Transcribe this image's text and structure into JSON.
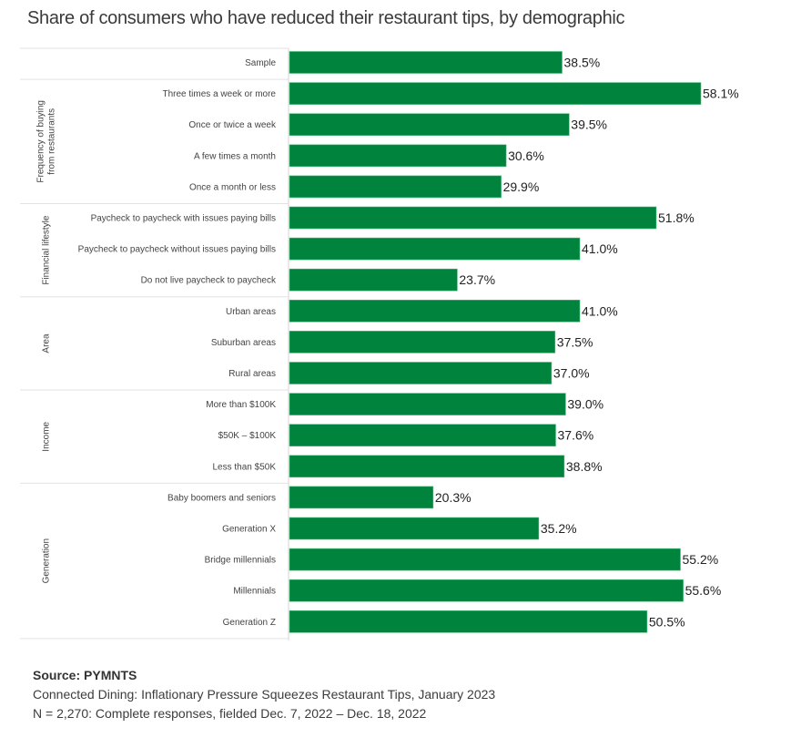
{
  "chart_data": {
    "type": "bar",
    "orientation": "horizontal",
    "title": "Share of consumers who have reduced their restaurant tips, by demographic",
    "xlabel": "",
    "ylabel": "",
    "xlim": [
      0,
      60
    ],
    "grid": false,
    "value_format": "percent, 1 decimal",
    "bar_color": "#00843D",
    "groups": [
      {
        "name": "",
        "categories": [
          "Sample"
        ],
        "values": [
          38.5
        ]
      },
      {
        "name": "Frequency of buying from restaurants",
        "name_lines": [
          "Frequency of buying",
          "from restaurants"
        ],
        "categories": [
          "Three times a week or more",
          "Once or twice a week",
          "A few times a month",
          "Once a month or less"
        ],
        "values": [
          58.1,
          39.5,
          30.6,
          29.9
        ]
      },
      {
        "name": "Financial lifestyle",
        "name_lines": [
          "Financial lifestyle"
        ],
        "categories": [
          "Paycheck to paycheck with issues paying bills",
          "Paycheck to paycheck without issues paying bills",
          "Do not live paycheck to paycheck"
        ],
        "values": [
          51.8,
          41.0,
          23.7
        ]
      },
      {
        "name": "Area",
        "name_lines": [
          "Area"
        ],
        "categories": [
          "Urban areas",
          "Suburban areas",
          "Rural areas"
        ],
        "values": [
          41.0,
          37.5,
          37.0
        ]
      },
      {
        "name": "Income",
        "name_lines": [
          "Income"
        ],
        "categories": [
          "More than $100K",
          "$50K – $100K",
          "Less than $50K"
        ],
        "values": [
          39.0,
          37.6,
          38.8
        ]
      },
      {
        "name": "Generation",
        "name_lines": [
          "Generation"
        ],
        "categories": [
          "Baby boomers and seniors",
          "Generation X",
          "Bridge millennials",
          "Millennials",
          "Generation Z"
        ],
        "values": [
          20.3,
          35.2,
          55.2,
          55.6,
          50.5
        ]
      }
    ]
  },
  "footer": {
    "source": "Source: PYMNTS",
    "report": "Connected Dining: Inflationary Pressure Squeezes Restaurant Tips, January 2023",
    "sample": "N = 2,270: Complete responses, fielded Dec. 7, 2022 – Dec. 18, 2022"
  }
}
